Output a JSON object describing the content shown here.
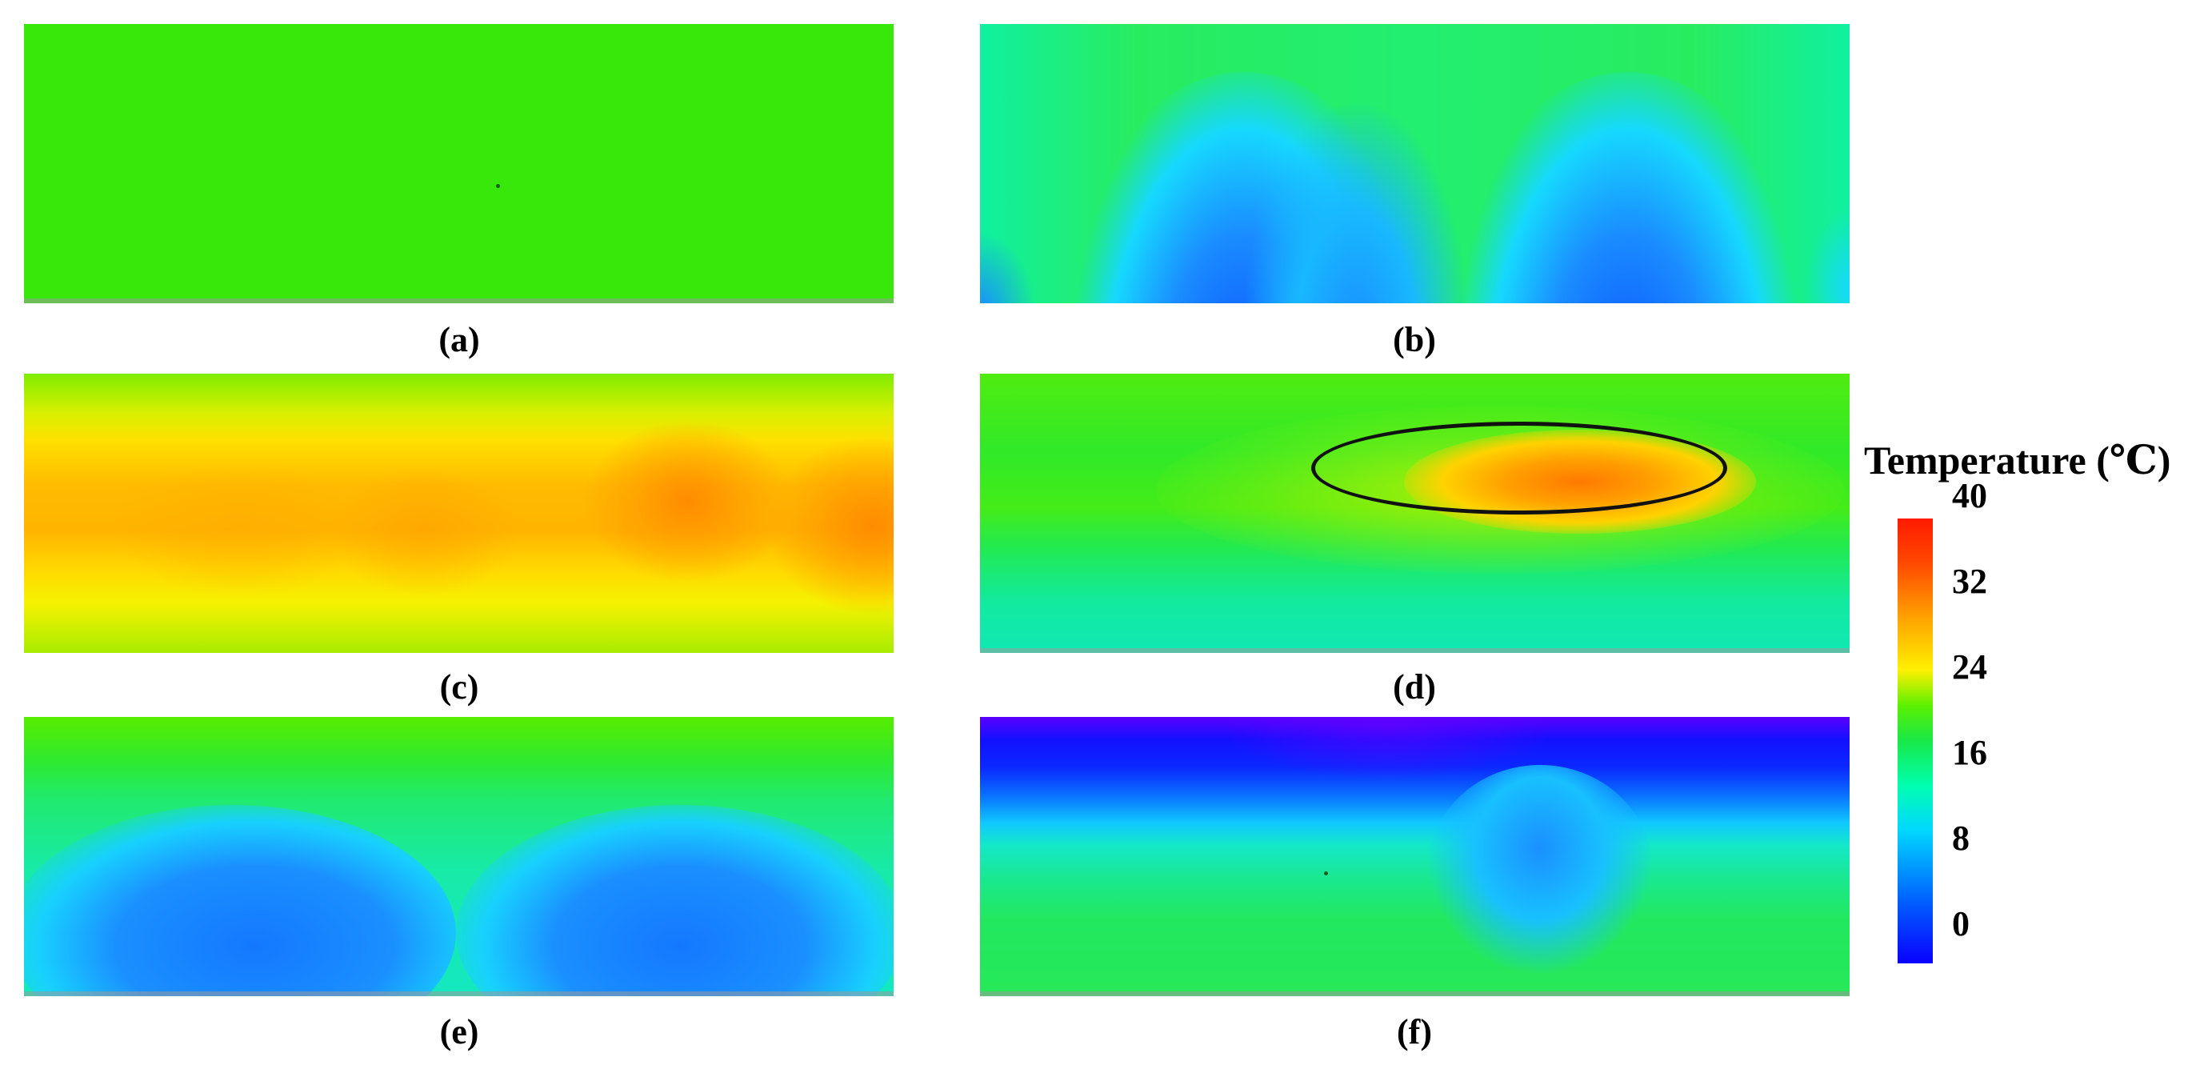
{
  "figure": {
    "captions": [
      "(a)",
      "(b)",
      "(c)",
      "(d)",
      "(e)",
      "(f)"
    ]
  },
  "legend": {
    "title": "Temperature (℃)",
    "ticks": [
      "40",
      "32",
      "24",
      "16",
      "8",
      "0"
    ],
    "colors": [
      "#0a00ff",
      "#0060ff",
      "#00d8ff",
      "#18e848",
      "#fff000",
      "#ffa000",
      "#ff1a00"
    ]
  }
}
